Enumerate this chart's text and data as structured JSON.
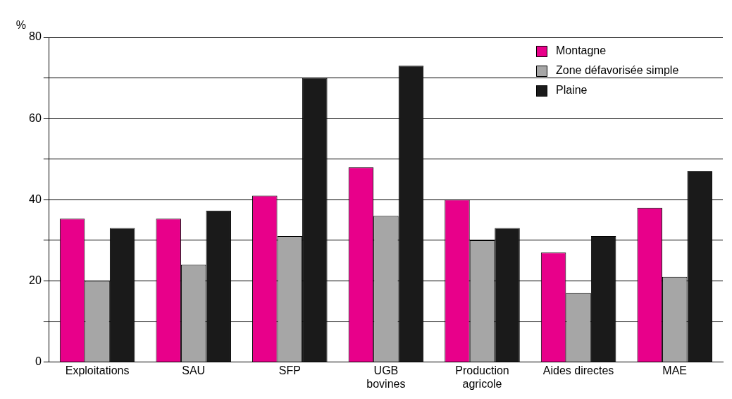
{
  "chart_data": {
    "type": "bar",
    "ylabel": "%",
    "categories": [
      "Exploitations",
      "SAU",
      "SFP",
      "UGB\nbovines",
      "Production\nagricole",
      "Aides directes",
      "MAE"
    ],
    "series": [
      {
        "name": "Montagne",
        "color": "#e8008a",
        "values": [
          35.3,
          35.3,
          41,
          48,
          40,
          27,
          38
        ]
      },
      {
        "name": "Zone défavorisée simple",
        "color": "#a6a6a6",
        "values": [
          20,
          24,
          31,
          36,
          30,
          17,
          21
        ]
      },
      {
        "name": "Plaine",
        "color": "#1a1a1a",
        "values": [
          33,
          37.3,
          70,
          73,
          33,
          31,
          47
        ]
      }
    ],
    "ylim": [
      0,
      80
    ],
    "yticks": [
      0,
      {
        "value": 10,
        "label": null
      },
      20,
      {
        "value": 30,
        "label": null
      },
      40,
      {
        "value": 50,
        "label": null
      },
      60,
      {
        "value": 70,
        "label": null
      },
      80
    ],
    "grid": "y",
    "legend": "top right"
  }
}
